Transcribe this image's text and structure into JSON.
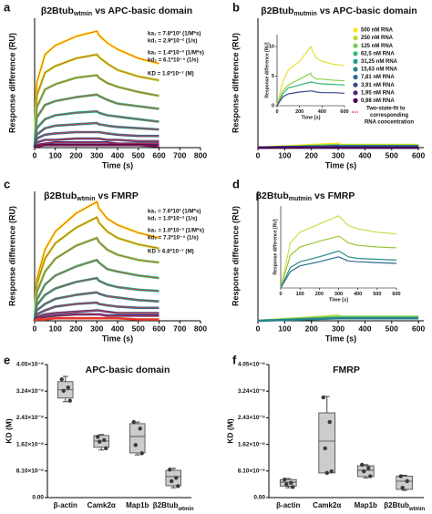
{
  "chart_data": [
    {
      "type": "line",
      "panel": "a",
      "title": {
        "main": "β2Btub",
        "sub": "wtmin",
        "rest": "vs APC-basic domain"
      },
      "xlabel": "Time (s)",
      "ylabel": "Response difference (RU)",
      "x": [
        0,
        10,
        50,
        100,
        200,
        300,
        310,
        350,
        400,
        500,
        600
      ],
      "xlim": [
        0,
        800
      ],
      "xticks": [
        0,
        100,
        200,
        300,
        400,
        500,
        600,
        700,
        800
      ],
      "ylim": [
        0,
        100
      ],
      "fit_color": "#e8392b",
      "annotations": [
        "ka₁ = 7.8*10³ (1/M*s)",
        "kd₁ = 2.9*10⁻² (1/s)",
        "ka₂ = 1.4*10⁻³ (1/M*s)",
        "kd₂ = 6.1*10⁻⁴ (1/s)",
        "KD = 1.6*10⁻⁷ (M)"
      ],
      "annotation_color": "#e8661c",
      "series": [
        {
          "color": "#fde725",
          "values": [
            0,
            50,
            72,
            79,
            86,
            90,
            87,
            81,
            76,
            69,
            65
          ]
        },
        {
          "color": "#b5de2b",
          "values": [
            0,
            40,
            58,
            63,
            69,
            72,
            70,
            65,
            60,
            55,
            52
          ]
        },
        {
          "color": "#6ece58",
          "values": [
            0,
            31,
            45,
            49,
            54,
            56,
            54,
            50,
            47,
            43,
            40
          ]
        },
        {
          "color": "#35b779",
          "values": [
            0,
            23,
            33,
            36,
            39,
            41,
            40,
            37,
            34,
            32,
            30
          ]
        },
        {
          "color": "#1f9e89",
          "values": [
            0,
            15,
            22,
            25,
            27,
            28,
            27,
            25,
            24,
            22,
            20
          ]
        },
        {
          "color": "#26828e",
          "values": [
            0,
            10,
            15,
            17,
            18,
            19,
            18,
            17,
            16,
            15,
            14
          ]
        },
        {
          "color": "#31688e",
          "values": [
            0,
            7,
            10,
            11,
            12,
            12,
            12,
            11,
            10,
            9,
            9
          ]
        },
        {
          "color": "#3e4989",
          "values": [
            0,
            4,
            6,
            6,
            7,
            7,
            7,
            6,
            6,
            5,
            5
          ]
        },
        {
          "color": "#482878",
          "values": [
            0,
            2,
            3,
            4,
            4,
            4,
            4,
            4,
            3,
            3,
            3
          ]
        },
        {
          "color": "#440154",
          "values": [
            0,
            1,
            2,
            2,
            2,
            2,
            2,
            2,
            2,
            2,
            1
          ]
        }
      ]
    },
    {
      "type": "line",
      "panel": "b",
      "title": {
        "main": "β2Btub",
        "sub": "mutmin",
        "rest": "vs APC-basic domain"
      },
      "xlabel": "Time (s)",
      "ylabel": "Response difference (RU)",
      "x": [
        0,
        300,
        310,
        600
      ],
      "xlim": [
        0,
        620
      ],
      "xticks": [
        0,
        100,
        200,
        300,
        400,
        500,
        600
      ],
      "ylim": [
        0,
        100
      ],
      "legend_loc": "upper right",
      "fit_color": "#e8392b",
      "fit_label": [
        "Two-state-fit to",
        "corresponding",
        "RNA concentration"
      ],
      "series": [
        {
          "name": "500 nM RNA",
          "color": "#fde725",
          "values": [
            0,
            3,
            2,
            2
          ]
        },
        {
          "name": "250 nM RNA",
          "color": "#b5de2b",
          "values": [
            0,
            2,
            2,
            2
          ]
        },
        {
          "name": "125 nM RNA",
          "color": "#6ece58",
          "values": [
            0,
            2,
            1,
            1
          ]
        },
        {
          "name": "62,5 nM RNA",
          "color": "#35b779",
          "values": [
            0,
            1,
            1,
            1
          ]
        },
        {
          "name": "31,25 nM RNA",
          "color": "#1f9e89",
          "values": [
            0,
            1,
            1,
            1
          ]
        },
        {
          "name": "15,63 nM RNA",
          "color": "#26828e",
          "values": [
            0,
            1,
            1,
            1
          ]
        },
        {
          "name": "7,81 nM RNA",
          "color": "#31688e",
          "values": [
            0,
            1,
            1,
            1
          ]
        },
        {
          "name": "3,91 nM RNA",
          "color": "#3e4989",
          "values": [
            0,
            1,
            0,
            0
          ]
        },
        {
          "name": "1,95 nM RNA",
          "color": "#482878",
          "values": [
            0,
            0,
            0,
            0
          ]
        },
        {
          "name": "0,98 nM RNA",
          "color": "#440154",
          "values": [
            0,
            0,
            0,
            0
          ]
        }
      ],
      "inset": {
        "xlabel": "Time [s]",
        "ylabel": "Response difference [RU]",
        "x": [
          0,
          50,
          100,
          200,
          300,
          310,
          350,
          400,
          500,
          600
        ],
        "xlim": [
          0,
          600
        ],
        "xticks": [
          0,
          200,
          400,
          600
        ],
        "ylim": [
          0,
          12
        ],
        "yticks": [
          0,
          5,
          10
        ],
        "series": [
          {
            "color": "#e4e034",
            "values": [
              0,
              4,
              6,
              7.5,
              10,
              9.5,
              8,
              7.5,
              7,
              6.8
            ]
          },
          {
            "color": "#8fd14f",
            "values": [
              0,
              2.5,
              3.5,
              4.5,
              5.5,
              5,
              4.5,
              4.5,
              4.3,
              4.2
            ]
          },
          {
            "color": "#35b779",
            "values": [
              0,
              2,
              3,
              3.5,
              4,
              4,
              3.8,
              3.7,
              3.6,
              3.5
            ]
          },
          {
            "color": "#3e4989",
            "values": [
              0,
              1.5,
              2,
              2.3,
              2.5,
              2.5,
              2.3,
              2.2,
              2.2,
              2.1
            ]
          }
        ]
      }
    },
    {
      "type": "line",
      "panel": "c",
      "title": {
        "main": "β2Btub",
        "sub": "wtmin",
        "rest": "vs FMRP"
      },
      "xlabel": "Time (s)",
      "ylabel": "Response difference (RU)",
      "x": [
        0,
        10,
        50,
        100,
        200,
        300,
        310,
        350,
        400,
        500,
        600
      ],
      "xlim": [
        0,
        800
      ],
      "xticks": [
        0,
        100,
        200,
        300,
        400,
        500,
        600,
        700,
        800
      ],
      "ylim": [
        0,
        100
      ],
      "fit_color": "#e8392b",
      "annotations": [
        "ka₁ = 7.6*10³ (1/M*s)",
        "kd₁ = 1.0*10⁻² (1/s)",
        "ka₂ = 1.0*10⁻³ (1/M*s)",
        "kd₂ = 7.3*10⁻⁴ (1/s)",
        "KD = 6.8*10⁻⁷ (M)"
      ],
      "annotation_color": "#e8661c",
      "series": [
        {
          "color": "#fde725",
          "values": [
            0,
            32,
            55,
            69,
            83,
            92,
            87,
            79,
            74,
            68,
            64
          ]
        },
        {
          "color": "#b5de2b",
          "values": [
            0,
            28,
            48,
            60,
            72,
            80,
            76,
            69,
            64,
            59,
            56
          ]
        },
        {
          "color": "#6ece58",
          "values": [
            0,
            22,
            38,
            48,
            58,
            64,
            61,
            55,
            51,
            47,
            45
          ]
        },
        {
          "color": "#35b779",
          "values": [
            0,
            16,
            28,
            35,
            42,
            47,
            45,
            40,
            38,
            35,
            33
          ]
        },
        {
          "color": "#1f9e89",
          "values": [
            0,
            12,
            20,
            25,
            30,
            33,
            31,
            28,
            26,
            24,
            23
          ]
        },
        {
          "color": "#26828e",
          "values": [
            0,
            8,
            13,
            17,
            20,
            22,
            21,
            19,
            18,
            16,
            15
          ]
        },
        {
          "color": "#31688e",
          "values": [
            0,
            5,
            8,
            11,
            13,
            14,
            13,
            12,
            11,
            10,
            10
          ]
        },
        {
          "color": "#3e4989",
          "values": [
            0,
            3,
            5,
            6,
            7,
            8,
            8,
            7,
            6,
            6,
            6
          ]
        },
        {
          "color": "#482878",
          "values": [
            0,
            2,
            3,
            4,
            5,
            5,
            5,
            4,
            4,
            4,
            4
          ]
        },
        {
          "color": "#e8392b",
          "values": [
            0,
            1,
            1,
            2,
            2,
            2,
            2,
            2,
            2,
            1,
            1
          ]
        }
      ]
    },
    {
      "type": "line",
      "panel": "d",
      "title": {
        "main": "β2Btub",
        "sub": "mutmin",
        "rest": "vs FMRP"
      },
      "xlabel": "Time (s)",
      "ylabel": "Response difference (RU)",
      "x": [
        0,
        300,
        310,
        600
      ],
      "xlim": [
        0,
        620
      ],
      "xticks": [
        0,
        100,
        200,
        300,
        400,
        500,
        600
      ],
      "ylim": [
        0,
        100
      ],
      "series": [
        {
          "color": "#c6e04c",
          "values": [
            0,
            4,
            3,
            3
          ]
        },
        {
          "color": "#6ece58",
          "values": [
            0,
            3,
            3,
            3
          ]
        },
        {
          "color": "#26828e",
          "values": [
            0,
            2,
            2,
            2
          ]
        }
      ],
      "inset": {
        "xlabel": "Time [s]",
        "ylabel": "Response difference [RU]",
        "x": [
          0,
          50,
          100,
          200,
          300,
          310,
          350,
          400,
          500,
          600
        ],
        "xlim": [
          0,
          600
        ],
        "xticks": [
          0,
          100,
          200,
          300,
          400,
          500,
          600
        ],
        "ylim": [
          0,
          100
        ],
        "series": [
          {
            "color": "#c6e04c",
            "values": [
              0,
              55,
              68,
              78,
              88,
              86,
              76,
              72,
              68,
              66
            ]
          },
          {
            "color": "#9cc83c",
            "values": [
              0,
              40,
              50,
              57,
              63,
              62,
              55,
              52,
              50,
              49
            ]
          },
          {
            "color": "#2a8c8c",
            "values": [
              0,
              25,
              32,
              38,
              45,
              44,
              38,
              36,
              35,
              34
            ]
          },
          {
            "color": "#2a6c8c",
            "values": [
              0,
              20,
              27,
              32,
              38,
              37,
              33,
              32,
              31,
              30
            ]
          }
        ]
      }
    },
    {
      "type": "box",
      "panel": "e",
      "title": {
        "main": "APC-basic domain"
      },
      "ylabel": "KD (M)",
      "categories": [
        "β-actin",
        "Camk2α",
        "Map1b",
        "β2Btub"
      ],
      "category_subscripts": {
        "3": "wtmin"
      },
      "ylim": [
        0,
        4.05e-08
      ],
      "yticks": [
        {
          "value": 0,
          "label": "0.00"
        },
        {
          "value": 8.1e-09,
          "label": "8.10×10⁻⁹"
        },
        {
          "value": 1.62e-08,
          "label": "1.62×10⁻⁸"
        },
        {
          "value": 2.43e-08,
          "label": "2.43×10⁻⁸"
        },
        {
          "value": 3.24e-08,
          "label": "3.24×10⁻⁸"
        },
        {
          "value": 4.05e-08,
          "label": "4.05×10⁻⁸"
        }
      ],
      "box_color": "#cccccc",
      "boxes": [
        {
          "min": 2.92e-08,
          "q1": 3.03e-08,
          "median": 3.28e-08,
          "q3": 3.53e-08,
          "max": 3.69e-08,
          "points": [
            3.6e-08,
            3.35e-08,
            3.25e-08,
            2.95e-08
          ]
        },
        {
          "min": 1.45e-08,
          "q1": 1.53e-08,
          "median": 1.72e-08,
          "q3": 1.89e-08,
          "max": 1.92e-08,
          "points": [
            1.85e-08,
            1.75e-08,
            1.7e-08,
            1.5e-08
          ]
        },
        {
          "min": 1.3e-08,
          "q1": 1.36e-08,
          "median": 1.86e-08,
          "q3": 2.25e-08,
          "max": 2.3e-08,
          "points": [
            2.3e-08,
            2.1e-08,
            1.6e-08,
            1.35e-08
          ]
        },
        {
          "min": 3e-09,
          "q1": 3.6e-09,
          "median": 6.4e-09,
          "q3": 8.3e-09,
          "max": 8.9e-09,
          "points": [
            8.5e-09,
            6e-09,
            5e-09,
            3.5e-09
          ]
        }
      ]
    },
    {
      "type": "box",
      "panel": "f",
      "title": {
        "main": "FMRP"
      },
      "ylabel": "KD (M)",
      "categories": [
        "β-actin",
        "Camk2α",
        "Map1b",
        "β2Btub"
      ],
      "category_subscripts": {
        "3": "wtmin"
      },
      "ylim": [
        0,
        4.05e-08
      ],
      "yticks": [
        {
          "value": 0,
          "label": "0.00"
        },
        {
          "value": 8.1e-09,
          "label": "8.10×10⁻⁹"
        },
        {
          "value": 1.62e-08,
          "label": "1.62×10⁻⁸"
        },
        {
          "value": 2.43e-08,
          "label": "2.43×10⁻⁸"
        },
        {
          "value": 3.24e-08,
          "label": "3.24×10⁻⁸"
        },
        {
          "value": 4.05e-08,
          "label": "4.05×10⁻⁸"
        }
      ],
      "box_color": "#cccccc",
      "boxes": [
        {
          "min": 3e-09,
          "q1": 3.5e-09,
          "median": 4.7e-09,
          "q3": 5.5e-09,
          "max": 5.8e-09,
          "points": [
            5.5e-09,
            4.5e-09,
            4e-09,
            3.2e-09
          ]
        },
        {
          "min": 7.5e-09,
          "q1": 7.5e-09,
          "median": 1.72e-08,
          "q3": 2.58e-08,
          "max": 3.08e-08,
          "points": [
            3.05e-08,
            2.3e-08,
            1.5e-08,
            8e-09,
            7.5e-09
          ]
        },
        {
          "min": 6e-09,
          "q1": 6.4e-09,
          "median": 8.3e-09,
          "q3": 9.7e-09,
          "max": 1e-08,
          "points": [
            1e-08,
            9e-09,
            8e-09,
            6.5e-09
          ]
        },
        {
          "min": 2.2e-09,
          "q1": 2.5e-09,
          "median": 5e-09,
          "q3": 6.5e-09,
          "max": 6.8e-09,
          "points": [
            6.5e-09,
            5e-09,
            3e-09
          ]
        }
      ]
    }
  ]
}
